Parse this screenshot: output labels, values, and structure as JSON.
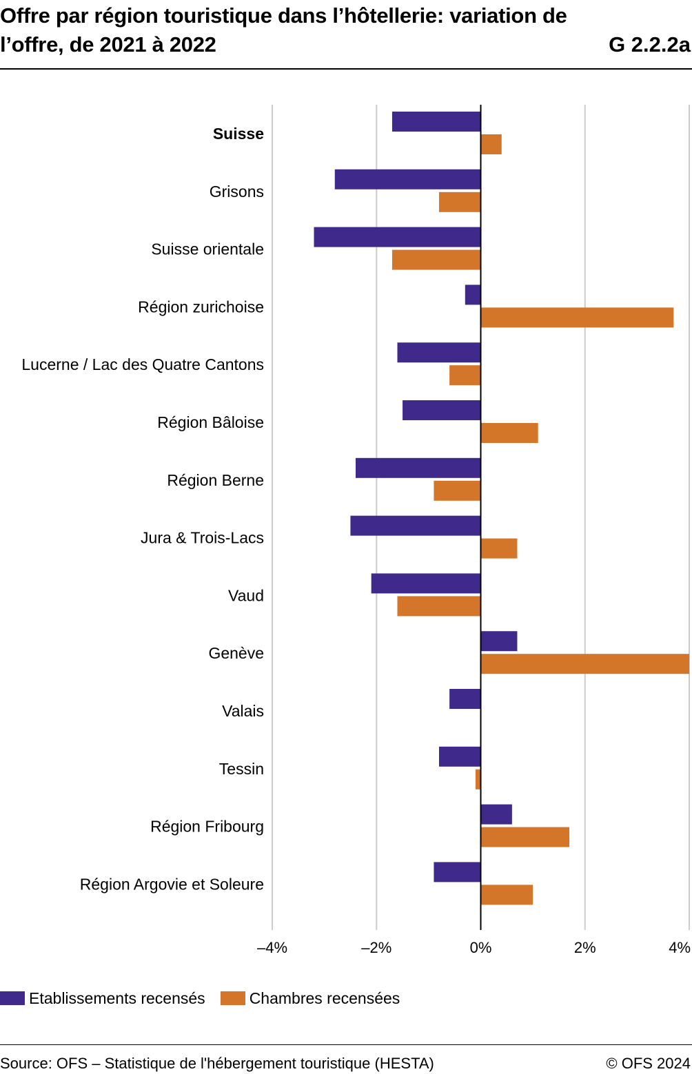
{
  "header": {
    "title": "Offre par région touristique dans l’hôtellerie: variation de l’offre, de 2021 à 2022",
    "figure_code": "G 2.2.2a"
  },
  "footer": {
    "source": "Source: OFS – Statistique de l'hébergement touristique (HESTA)",
    "copyright": "© OFS 2024"
  },
  "colors": {
    "series_1": "#3f2a8c",
    "series_2": "#d4762a",
    "grid": "#cccccc",
    "zero_line": "#000000"
  },
  "chart_data": {
    "type": "bar",
    "orientation": "horizontal",
    "categories": [
      "Suisse",
      "Grisons",
      "Suisse orientale",
      "Région zurichoise",
      "Lucerne / Lac des Quatre Cantons",
      "Région Bâloise",
      "Région Berne",
      "Jura & Trois-Lacs",
      "Vaud",
      "Genève",
      "Valais",
      "Tessin",
      "Région Fribourg",
      "Région Argovie et Soleure"
    ],
    "bold_categories": [
      "Suisse"
    ],
    "series": [
      {
        "name": "Etablissements recensés",
        "color": "#3f2a8c",
        "values": [
          -1.7,
          -2.8,
          -3.2,
          -0.3,
          -1.6,
          -1.5,
          -2.4,
          -2.5,
          -2.1,
          0.7,
          -0.6,
          -0.8,
          0.6,
          -0.9
        ]
      },
      {
        "name": "Chambres recensées",
        "color": "#d4762a",
        "values": [
          0.4,
          -0.8,
          -1.7,
          3.7,
          -0.6,
          1.1,
          -0.9,
          0.7,
          -1.6,
          4.0,
          0.0,
          -0.1,
          1.7,
          1.0
        ]
      }
    ],
    "xlim": [
      -4,
      4
    ],
    "xticks": [
      -4,
      -2,
      0,
      2,
      4
    ],
    "xtick_labels": [
      "–4%",
      "–2%",
      "0%",
      "2%",
      "4%"
    ],
    "grid": true,
    "legend_position": "bottom-left"
  }
}
